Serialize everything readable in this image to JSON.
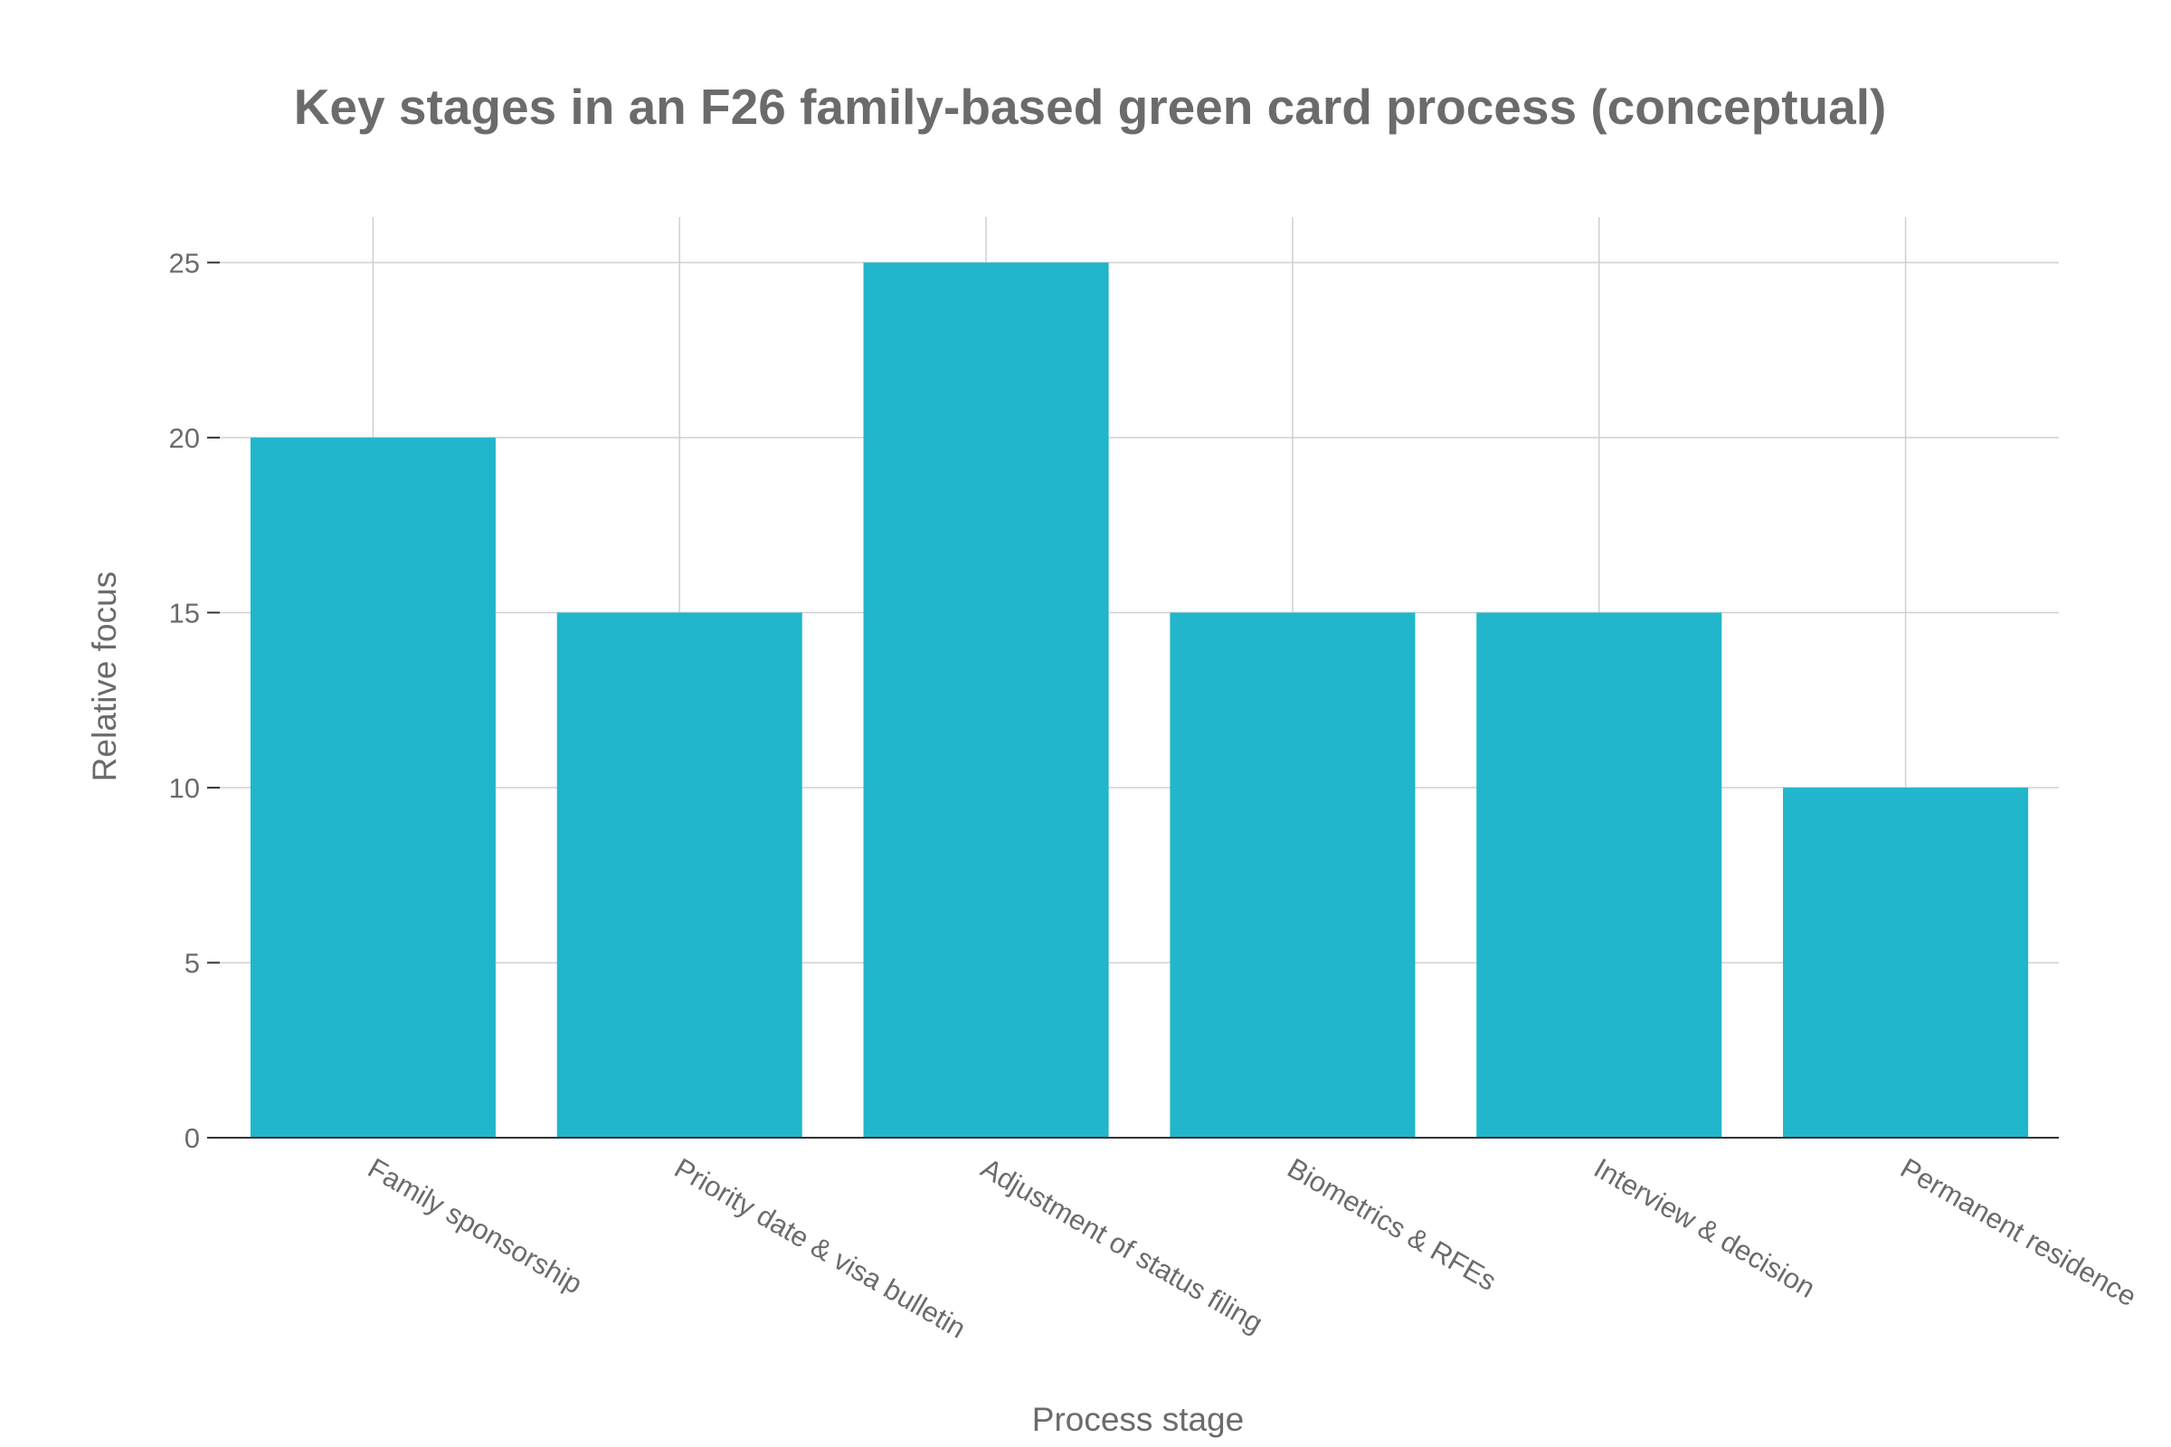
{
  "chart_data": {
    "type": "bar",
    "title": "Key stages in an F26 family-based green card process (conceptual)",
    "xlabel": "Process stage",
    "ylabel": "Relative focus",
    "categories": [
      "Family sponsorship",
      "Priority date & visa bulletin",
      "Adjustment of status filing",
      "Biometrics & RFEs",
      "Interview & decision",
      "Permanent residence"
    ],
    "values": [
      20,
      15,
      25,
      15,
      15,
      10
    ],
    "ylim": [
      0,
      26.3
    ],
    "yticks": [
      "0",
      "5",
      "10",
      "15",
      "20",
      "25"
    ],
    "grid": true,
    "legend": "none",
    "colors": {
      "bar": "#21b6cc",
      "grid": "#d0d0d0",
      "axis": "#333333",
      "text": "#6b6b6b"
    }
  }
}
